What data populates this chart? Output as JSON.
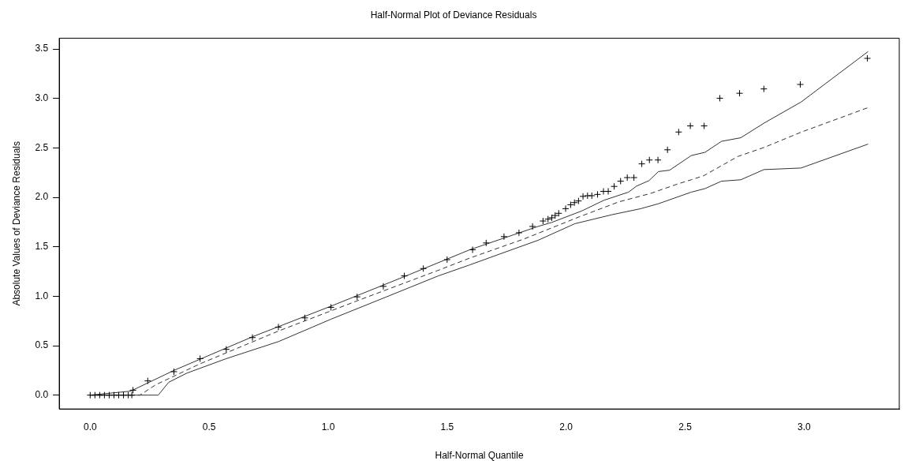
{
  "chart_data": {
    "type": "scatter",
    "title": "Half-Normal Plot of Deviance Residuals",
    "xlabel": "Half-Normal Quantile",
    "ylabel": "Absolute Values of Deviance Residuals",
    "xlim": [
      -0.13,
      3.4
    ],
    "ylim": [
      -0.14,
      3.61
    ],
    "xticks": [
      {
        "value": 0,
        "label": "0.0"
      },
      0.5,
      {
        "value": 1,
        "label": "1.0"
      },
      1.5,
      {
        "value": 2,
        "label": "2.0"
      },
      2.5,
      {
        "value": 3,
        "label": "3.0"
      }
    ],
    "yticks": [
      {
        "value": 0,
        "label": "0.0"
      },
      0.5,
      {
        "value": 1,
        "label": "1.0"
      },
      1.5,
      {
        "value": 2,
        "label": "2.0"
      },
      2.5,
      {
        "value": 3,
        "label": "3.0"
      },
      3.5
    ],
    "grid": false,
    "legend": false,
    "series": [
      {
        "marker": "cross",
        "color": "#000000",
        "x": [
          0,
          0.02,
          0.04,
          0.06,
          0.08,
          0.1,
          0.12,
          0.14,
          0.16,
          0.175,
          0.18,
          0.242,
          0.352,
          0.462,
          0.572,
          0.682,
          0.791,
          0.902,
          1.012,
          1.122,
          1.232,
          1.32,
          1.4,
          1.5,
          1.607,
          1.664,
          1.739,
          1.802,
          1.859,
          1.903,
          1.924,
          1.94,
          1.954,
          1.969,
          1.998,
          2.019,
          2.035,
          2.052,
          2.071,
          2.09,
          2.108,
          2.132,
          2.157,
          2.177,
          2.202,
          2.229,
          2.257,
          2.285,
          2.318,
          2.35,
          2.386,
          2.426,
          2.473,
          2.522,
          2.58,
          2.646,
          2.729,
          2.831,
          2.984,
          3.266
        ],
        "values": [
          0,
          0,
          0,
          0,
          0,
          0,
          0,
          0,
          0,
          0,
          0.05,
          0.144,
          0.237,
          0.369,
          0.463,
          0.582,
          0.688,
          0.781,
          0.888,
          0.994,
          1.1,
          1.206,
          1.28,
          1.37,
          1.47,
          1.539,
          1.603,
          1.642,
          1.706,
          1.761,
          1.78,
          1.794,
          1.817,
          1.839,
          1.886,
          1.925,
          1.947,
          1.964,
          2.01,
          2.017,
          2.017,
          2.03,
          2.061,
          2.061,
          2.111,
          2.164,
          2.2,
          2.2,
          2.339,
          2.378,
          2.378,
          2.481,
          2.661,
          2.723,
          2.723,
          3.003,
          3.053,
          3.097,
          3.142,
          3.406
        ]
      },
      {
        "type": "line",
        "marker": "none",
        "color": "#333333",
        "line_style": "solid",
        "x": [
          0,
          0.17,
          0.352,
          0.682,
          1.012,
          1.342,
          1.595,
          1.882,
          1.94,
          2.067,
          2.158,
          2.262,
          2.296,
          2.348,
          2.388,
          2.435,
          2.526,
          2.584,
          2.653,
          2.734,
          2.833,
          2.987,
          3.269
        ],
        "values": [
          0,
          0.04,
          0.25,
          0.59,
          0.9,
          1.22,
          1.47,
          1.706,
          1.747,
          1.864,
          1.97,
          2.053,
          2.114,
          2.169,
          2.261,
          2.275,
          2.423,
          2.456,
          2.567,
          2.603,
          2.753,
          2.964,
          3.475
        ]
      },
      {
        "type": "line",
        "marker": "none",
        "color": "#333333",
        "line_style": "dashed",
        "x": [
          0,
          0.209,
          0.275,
          0.462,
          0.791,
          1.122,
          1.46,
          1.595,
          1.825,
          2.055,
          2.222,
          2.354,
          2.469,
          2.526,
          2.578,
          2.722,
          2.833,
          2.987,
          3.269
        ],
        "values": [
          0,
          0,
          0.104,
          0.317,
          0.648,
          0.954,
          1.26,
          1.386,
          1.581,
          1.803,
          1.955,
          2.039,
          2.136,
          2.178,
          2.219,
          2.414,
          2.506,
          2.659,
          2.908
        ]
      },
      {
        "type": "line",
        "marker": "none",
        "color": "#333333",
        "line_style": "solid",
        "x": [
          0,
          0.286,
          0.33,
          0.407,
          0.572,
          0.792,
          1.012,
          1.232,
          1.463,
          1.595,
          1.721,
          1.882,
          2.037,
          2.193,
          2.314,
          2.388,
          2.526,
          2.584,
          2.653,
          2.734,
          2.831,
          2.987,
          3.269
        ],
        "values": [
          0,
          0,
          0.13,
          0.223,
          0.369,
          0.542,
          0.768,
          0.981,
          1.206,
          1.317,
          1.427,
          1.566,
          1.734,
          1.825,
          1.886,
          1.936,
          2.053,
          2.089,
          2.164,
          2.178,
          2.281,
          2.297,
          2.539
        ]
      }
    ]
  }
}
